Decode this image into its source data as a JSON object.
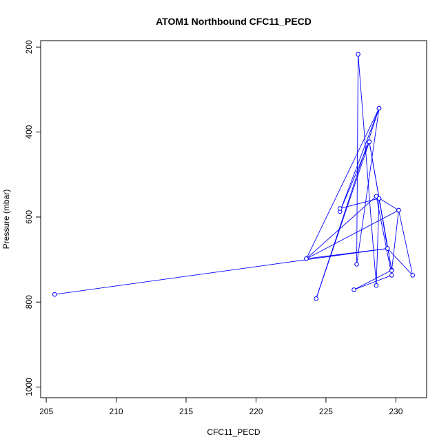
{
  "chart_data": {
    "type": "scatter",
    "title": "ATOM1 Northbound CFC11_PECD",
    "xlabel": "CFC11_PECD",
    "ylabel": "Pressure (mbar)",
    "xlim": [
      204.6,
      232.2
    ],
    "ylim": [
      1025,
      185
    ],
    "y_reversed": true,
    "grid": false,
    "xticks": [
      205,
      210,
      215,
      220,
      225,
      230
    ],
    "yticks": [
      200,
      400,
      600,
      800,
      1000
    ],
    "series": [
      {
        "color": "#0000ff",
        "marker": "open-circle",
        "points": [
          {
            "x": 205.6,
            "y": 782
          },
          {
            "x": 229.4,
            "y": 674
          },
          {
            "x": 228.8,
            "y": 556
          },
          {
            "x": 228.6,
            "y": 761
          },
          {
            "x": 227.3,
            "y": 217
          },
          {
            "x": 227.2,
            "y": 711
          },
          {
            "x": 228.8,
            "y": 344
          },
          {
            "x": 223.6,
            "y": 698
          },
          {
            "x": 228.6,
            "y": 551
          },
          {
            "x": 229.7,
            "y": 737
          },
          {
            "x": 227.0,
            "y": 771
          },
          {
            "x": 229.7,
            "y": 725
          },
          {
            "x": 228.1,
            "y": 423
          },
          {
            "x": 226.0,
            "y": 587
          },
          {
            "x": 228.8,
            "y": 344
          },
          {
            "x": 224.3,
            "y": 792
          },
          {
            "x": 228.1,
            "y": 423
          },
          {
            "x": 229.7,
            "y": 726
          },
          {
            "x": 230.2,
            "y": 584
          },
          {
            "x": 231.2,
            "y": 737
          },
          {
            "x": 229.4,
            "y": 674
          },
          {
            "x": 223.6,
            "y": 698
          },
          {
            "x": 230.2,
            "y": 584
          },
          {
            "x": 228.8,
            "y": 556
          },
          {
            "x": 226.0,
            "y": 580
          }
        ]
      }
    ]
  }
}
